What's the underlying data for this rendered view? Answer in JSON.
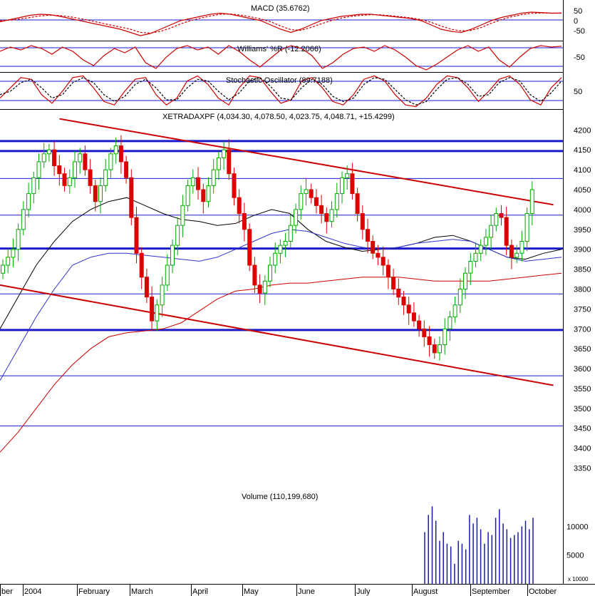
{
  "chart_data": [
    {
      "type": "line",
      "panel": "macd",
      "title": "MACD (35.6762)",
      "ylim": [
        -90,
        90
      ],
      "yticks": [
        "50",
        "0",
        "-50"
      ],
      "levels": [
        0
      ],
      "series": [
        {
          "values": [
            -5,
            5,
            15,
            25,
            30,
            28,
            20,
            10,
            0,
            -10,
            -20,
            -30,
            -40,
            -55,
            -70,
            -60,
            -40,
            -20,
            0,
            10,
            20,
            30,
            35,
            30,
            20,
            10,
            0,
            -20,
            -40,
            -55,
            -40,
            -20,
            0,
            10,
            20,
            25,
            30,
            30,
            25,
            20,
            15,
            10,
            0,
            -20,
            -40,
            -50,
            -55,
            -40,
            -20,
            0,
            15,
            25,
            35,
            40,
            38,
            35,
            36
          ],
          "color": "#cc0000"
        },
        {
          "values": [
            0,
            2,
            8,
            15,
            22,
            26,
            24,
            18,
            10,
            0,
            -10,
            -20,
            -30,
            -40,
            -55,
            -58,
            -50,
            -35,
            -15,
            0,
            12,
            22,
            30,
            31,
            26,
            18,
            8,
            -5,
            -25,
            -42,
            -45,
            -32,
            -15,
            0,
            12,
            20,
            25,
            28,
            27,
            23,
            18,
            13,
            5,
            -8,
            -25,
            -40,
            -48,
            -45,
            -32,
            -12,
            5,
            18,
            28,
            34,
            36,
            35,
            35
          ],
          "color": "#cc0000",
          "style": "dashed"
        }
      ]
    },
    {
      "type": "line",
      "panel": "williams",
      "title": "Williams' %R (-12.2066)",
      "ylim": [
        -100,
        0
      ],
      "yticks": [
        "-50"
      ],
      "levels": [
        -20,
        -80
      ],
      "series": [
        {
          "values": [
            -30,
            -15,
            -25,
            -10,
            -20,
            -40,
            -15,
            -30,
            -60,
            -80,
            -45,
            -20,
            -35,
            -15,
            -70,
            -90,
            -50,
            -20,
            -10,
            -25,
            -15,
            -40,
            -10,
            -30,
            -60,
            -85,
            -55,
            -25,
            -10,
            -20,
            -45,
            -90,
            -70,
            -40,
            -20,
            -15,
            -30,
            -10,
            -25,
            -50,
            -80,
            -95,
            -75,
            -50,
            -25,
            -10,
            -30,
            -15,
            -60,
            -85,
            -50,
            -20,
            -10,
            -15,
            -12
          ],
          "color": "#cc0000"
        }
      ]
    },
    {
      "type": "line",
      "panel": "stochastic",
      "title": "Stochastic Oscillator (89.7188)",
      "ylim": [
        0,
        100
      ],
      "yticks": [
        "50"
      ],
      "levels": [
        80,
        20
      ],
      "series": [
        {
          "values": [
            30,
            60,
            90,
            85,
            40,
            15,
            50,
            90,
            95,
            60,
            20,
            10,
            50,
            85,
            90,
            40,
            10,
            30,
            80,
            95,
            70,
            30,
            10,
            60,
            95,
            90,
            50,
            15,
            25,
            80,
            90,
            60,
            20,
            10,
            40,
            85,
            95,
            80,
            40,
            10,
            5,
            30,
            70,
            95,
            90,
            60,
            20,
            50,
            85,
            95,
            70,
            25,
            10,
            60,
            90
          ],
          "color": "#cc0000"
        },
        {
          "values": [
            40,
            50,
            75,
            85,
            60,
            30,
            40,
            75,
            90,
            75,
            40,
            20,
            35,
            70,
            85,
            60,
            25,
            25,
            60,
            85,
            80,
            50,
            25,
            45,
            80,
            90,
            65,
            30,
            25,
            60,
            85,
            70,
            35,
            20,
            30,
            70,
            90,
            85,
            55,
            25,
            10,
            20,
            55,
            85,
            90,
            70,
            35,
            40,
            75,
            90,
            80,
            40,
            20,
            45,
            80
          ],
          "color": "#000000",
          "style": "dashed"
        }
      ]
    },
    {
      "type": "candlestick",
      "panel": "price",
      "title": "XETRADAXPF (4,034.30, 4,078.50, 4,023.75, 4,048.71, +15.4299)",
      "ylim": [
        3290,
        4240
      ],
      "yticks": [
        "4200",
        "4150",
        "4100",
        "4050",
        "4000",
        "3950",
        "3900",
        "3850",
        "3800",
        "3750",
        "3700",
        "3650",
        "3600",
        "3550",
        "3500",
        "3450",
        "3400",
        "3350"
      ],
      "xticks": [
        "ber",
        "2004",
        "February",
        "March",
        "April",
        "May",
        "June",
        "July",
        "August",
        "September",
        "October"
      ],
      "close": [
        3860,
        3880,
        3900,
        3950,
        4000,
        4040,
        4080,
        4120,
        4140,
        4150,
        4110,
        4090,
        4060,
        4080,
        4120,
        4140,
        4100,
        4060,
        4020,
        4060,
        4100,
        4140,
        4160,
        4120,
        4080,
        3980,
        3890,
        3830,
        3780,
        3720,
        3760,
        3810,
        3860,
        3910,
        3960,
        4010,
        4060,
        4080,
        4050,
        4020,
        4060,
        4100,
        4130,
        4150,
        4090,
        4030,
        3990,
        3950,
        3860,
        3810,
        3790,
        3820,
        3860,
        3890,
        3910,
        3920,
        3960,
        4000,
        4040,
        4050,
        4030,
        4010,
        3990,
        3970,
        4000,
        4040,
        4080,
        4090,
        4040,
        3990,
        3950,
        3920,
        3890,
        3880,
        3860,
        3830,
        3800,
        3780,
        3760,
        3740,
        3720,
        3700,
        3680,
        3660,
        3640,
        3660,
        3700,
        3730,
        3760,
        3800,
        3840,
        3870,
        3890,
        3910,
        3930,
        3960,
        3990,
        3980,
        3910,
        3880,
        3890,
        3920,
        3990,
        4050
      ],
      "overlays": [
        {
          "name": "",
          "color": "#000000",
          "values": [
            3700,
            3780,
            3860,
            3920,
            3970,
            4000,
            4020,
            4030,
            4010,
            3990,
            3975,
            3970,
            3960,
            3965,
            3985,
            4000,
            3990,
            3950,
            3920,
            3905,
            3895,
            3900,
            3905,
            3915,
            3930,
            3935,
            3920,
            3900,
            3880,
            3875,
            3890,
            3900
          ]
        },
        {
          "name": "",
          "color": "#3333cc",
          "values": [
            3570,
            3650,
            3730,
            3800,
            3860,
            3880,
            3890,
            3890,
            3885,
            3880,
            3875,
            3870,
            3880,
            3900,
            3920,
            3940,
            3950,
            3945,
            3930,
            3915,
            3905,
            3900,
            3905,
            3915,
            3920,
            3925,
            3920,
            3900,
            3880,
            3870,
            3875,
            3880
          ]
        },
        {
          "name": "",
          "color": "#cc0000",
          "values": [
            3390,
            3440,
            3500,
            3560,
            3610,
            3650,
            3680,
            3690,
            3695,
            3700,
            3715,
            3745,
            3775,
            3795,
            3800,
            3810,
            3815,
            3815,
            3820,
            3825,
            3830,
            3830,
            3830,
            3825,
            3820,
            3820,
            3820,
            3820,
            3825,
            3830,
            3835,
            3840
          ]
        }
      ],
      "horizontal_levels": [
        4172,
        4147,
        4078,
        3986,
        3902,
        3788,
        3697,
        3582,
        3456
      ],
      "trendlines": [
        {
          "color": "#cc0000",
          "from": [
            0.1,
            4228
          ],
          "to": [
            0.93,
            4012
          ]
        },
        {
          "color": "#cc0000",
          "from": [
            0.0,
            3810
          ],
          "to": [
            0.93,
            3558
          ]
        }
      ]
    },
    {
      "type": "bar",
      "panel": "volume",
      "title": "Volume (110,199,680)",
      "yticks": [
        "10000",
        "5000"
      ],
      "unit_label": "x 10000",
      "values": [
        9000,
        12000,
        13500,
        11000,
        7500,
        9000,
        7000,
        6500,
        3500,
        7500,
        7000,
        6000,
        12000,
        10500,
        11500,
        9500,
        7000,
        9000,
        8500,
        11500,
        13000,
        10500,
        9500,
        8000,
        8500,
        9000,
        10000,
        11000,
        9500,
        11500
      ]
    }
  ]
}
